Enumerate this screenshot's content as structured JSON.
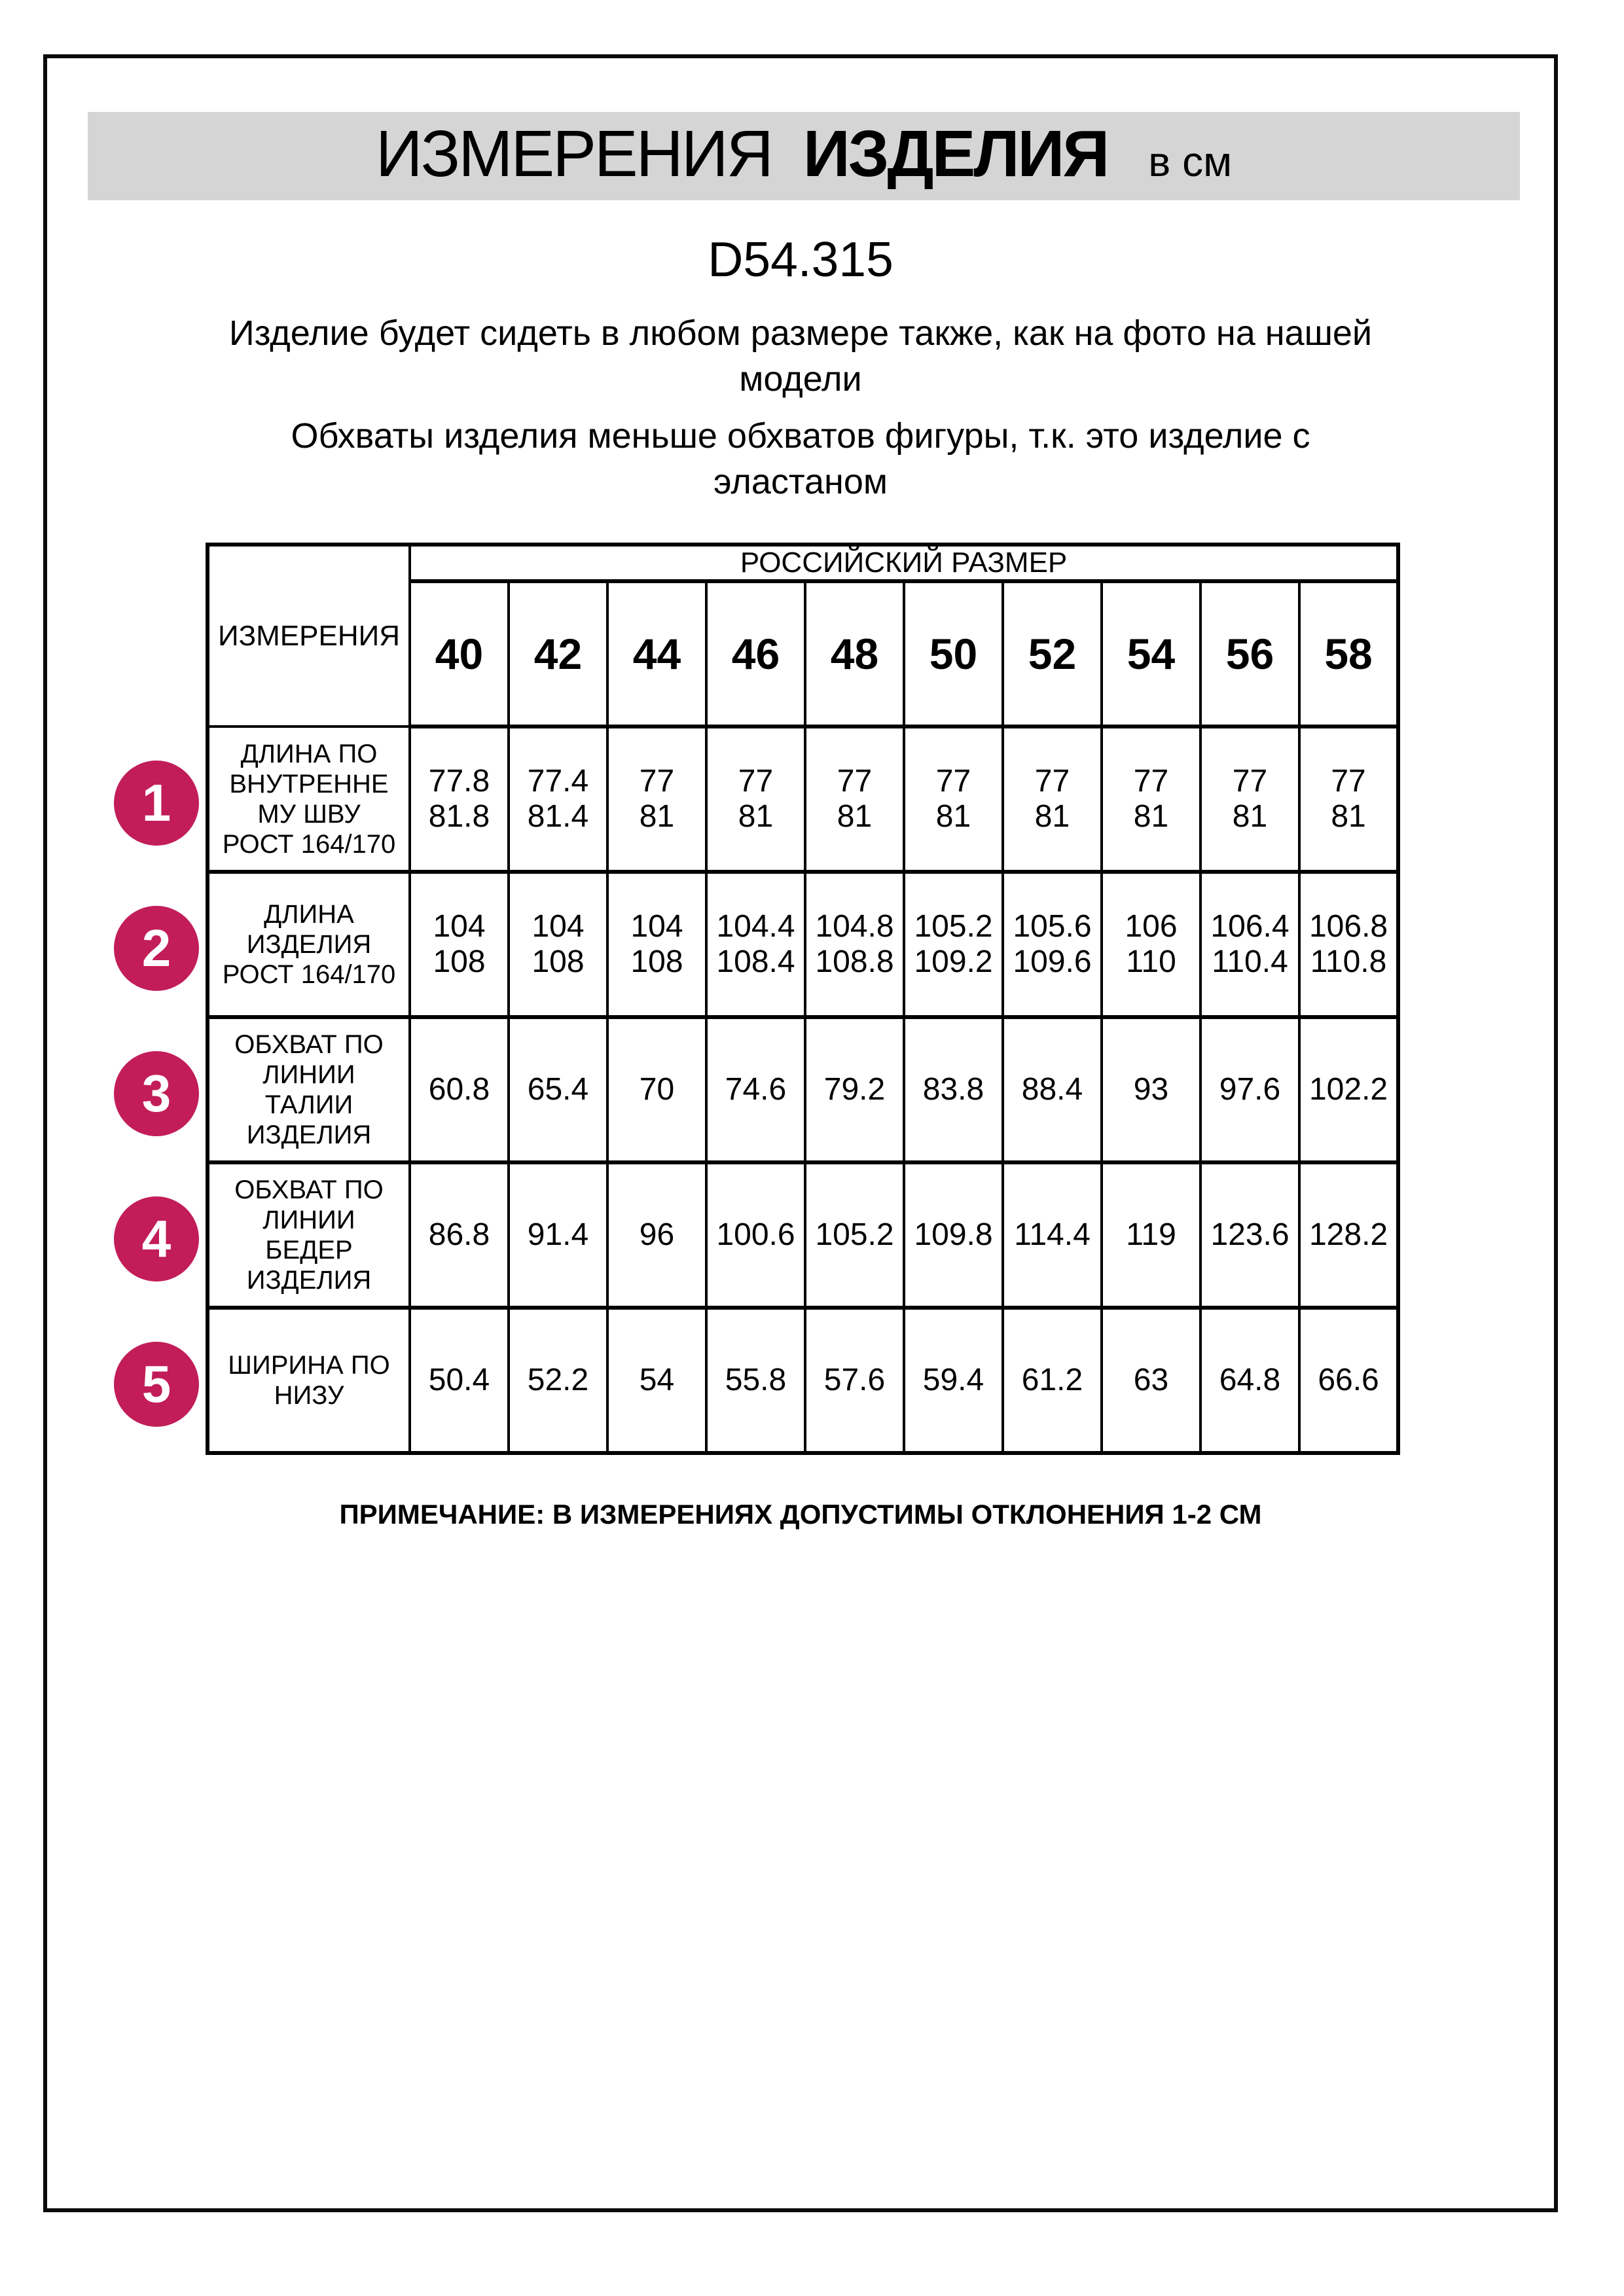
{
  "header": {
    "title_word1": "ИЗМЕРЕНИЯ",
    "title_word2": "ИЗДЕЛИЯ",
    "title_unit": "в см",
    "model_code": "D54.315",
    "fit_note": "Изделие будет сидеть в любом размере также, как на фото на нашей\nмодели",
    "elastane_note": "Обхваты изделия меньше обхватов фигуры, т.к. это изделие с\nэластаном"
  },
  "table": {
    "corner_header": "ИЗМЕРЕНИЯ",
    "size_group_header": "РОССИЙСКИЙ РАЗМЕР",
    "sizes": [
      "40",
      "42",
      "44",
      "46",
      "48",
      "50",
      "52",
      "54",
      "56",
      "58"
    ],
    "rows": [
      {
        "num": "1",
        "label": "ДЛИНА ПО\nВНУТРЕННЕ\nМУ ШВУ\nРОСТ 164/170",
        "values": [
          "77.8\n81.8",
          "77.4\n81.4",
          "77\n81",
          "77\n81",
          "77\n81",
          "77\n81",
          "77\n81",
          "77\n81",
          "77\n81",
          "77\n81"
        ]
      },
      {
        "num": "2",
        "label": "ДЛИНА\nИЗДЕЛИЯ\nРОСТ 164/170",
        "values": [
          "104\n108",
          "104\n108",
          "104\n108",
          "104.4\n108.4",
          "104.8\n108.8",
          "105.2\n109.2",
          "105.6\n109.6",
          "106\n110",
          "106.4\n110.4",
          "106.8\n110.8"
        ]
      },
      {
        "num": "3",
        "label": "ОБХВАТ ПО\nЛИНИИ\nТАЛИИ\nИЗДЕЛИЯ",
        "values": [
          "60.8",
          "65.4",
          "70",
          "74.6",
          "79.2",
          "83.8",
          "88.4",
          "93",
          "97.6",
          "102.2"
        ]
      },
      {
        "num": "4",
        "label": "ОБХВАТ ПО\nЛИНИИ\nБЕДЕР\nИЗДЕЛИЯ",
        "values": [
          "86.8",
          "91.4",
          "96",
          "100.6",
          "105.2",
          "109.8",
          "114.4",
          "119",
          "123.6",
          "128.2"
        ]
      },
      {
        "num": "5",
        "label": "ШИРИНА ПО\nНИЗУ",
        "values": [
          "50.4",
          "52.2",
          "54",
          "55.8",
          "57.6",
          "59.4",
          "61.2",
          "63",
          "64.8",
          "66.6"
        ]
      }
    ]
  },
  "footnote": "ПРИМЕЧАНИЕ: В ИЗМЕРЕНИЯХ ДОПУСТИМЫ ОТКЛОНЕНИЯ 1-2 СМ",
  "colors": {
    "accent_badge": "#c21d59",
    "title_band": "#d5d5d5",
    "line": "#000000"
  }
}
